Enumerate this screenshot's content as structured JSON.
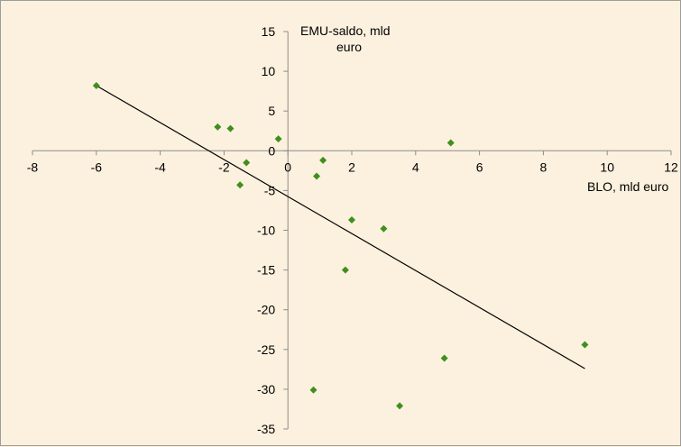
{
  "chart_data": {
    "type": "scatter",
    "title": "",
    "xlabel": "BLO, mld euro",
    "ylabel_lines": [
      "EMU-saldo, mld",
      "euro"
    ],
    "xlim": [
      -8,
      12
    ],
    "ylim": [
      -35,
      15
    ],
    "x_ticks": [
      -8,
      -6,
      -4,
      -2,
      0,
      2,
      4,
      6,
      8,
      10,
      12
    ],
    "x_tick_labels": [
      "-8",
      "-6",
      "-4",
      "-2",
      "0",
      "2",
      "4",
      "6",
      "8",
      "10",
      "12"
    ],
    "y_ticks": [
      15,
      10,
      5,
      0,
      -5,
      -10,
      -15,
      -20,
      -25,
      -30,
      -35
    ],
    "y_tick_labels": [
      "15",
      "10",
      "5",
      "0",
      "-5",
      "-10",
      "-15",
      "-20",
      "-25",
      "-30",
      "-35"
    ],
    "grid": false,
    "legend": "none",
    "marker_color": "#3f8f1f",
    "trendline_color": "#000000",
    "background_color": "#fcf1de",
    "series": [
      {
        "points": [
          {
            "x": -6.0,
            "y": 8.2
          },
          {
            "x": -2.2,
            "y": 3.0
          },
          {
            "x": -1.8,
            "y": 2.8
          },
          {
            "x": -0.3,
            "y": 1.5
          },
          {
            "x": -1.3,
            "y": -1.5
          },
          {
            "x": -1.5,
            "y": -4.3
          },
          {
            "x": 1.1,
            "y": -1.2
          },
          {
            "x": 0.9,
            "y": -3.2
          },
          {
            "x": 5.1,
            "y": 1.0
          },
          {
            "x": 2.0,
            "y": -8.7
          },
          {
            "x": 3.0,
            "y": -9.8
          },
          {
            "x": 1.8,
            "y": -15.0
          },
          {
            "x": 0.8,
            "y": -30.1
          },
          {
            "x": 3.5,
            "y": -32.1
          },
          {
            "x": 4.9,
            "y": -26.1
          },
          {
            "x": 9.3,
            "y": -24.4
          }
        ]
      }
    ],
    "trendline": {
      "x": [
        -6.0,
        9.3
      ],
      "y": [
        8.2,
        -27.4
      ]
    }
  }
}
